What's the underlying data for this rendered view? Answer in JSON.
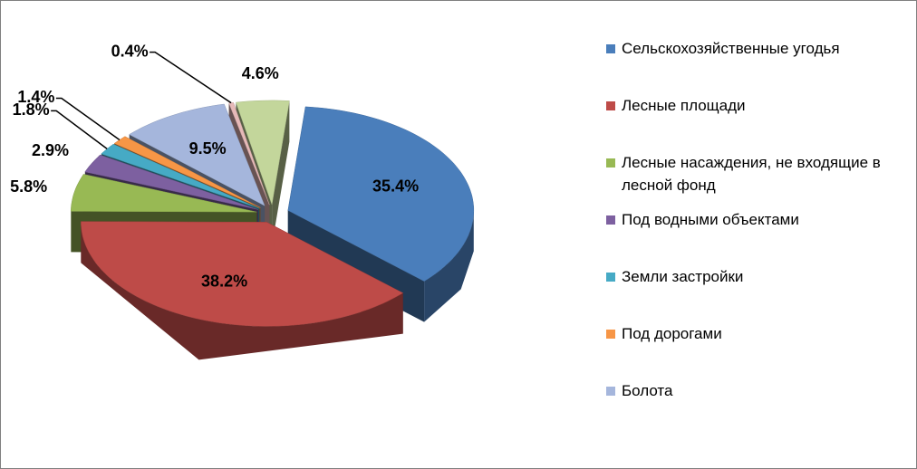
{
  "chart_data": {
    "type": "pie",
    "categories": [
      "Сельскохозяйственные угодья",
      "Лесные площади",
      "Лесные насаждения, не входящие в лесной фонд",
      "Под водными объектами",
      "Земли застройки",
      "Под дорогами",
      "Болота",
      null,
      null
    ],
    "values": [
      35.4,
      38.2,
      5.8,
      2.9,
      1.8,
      1.4,
      9.5,
      0.4,
      4.6
    ],
    "value_labels": [
      "35.4%",
      "38.2%",
      "5.8%",
      "2.9%",
      "1.8%",
      "1.4%",
      "9.5%",
      "0.4%",
      "4.6%"
    ],
    "colors": [
      "#4a7ebb",
      "#be4b48",
      "#98b954",
      "#7d60a0",
      "#46aac5",
      "#f79646",
      "#a5b6dc",
      "#e6b9b8",
      "#c3d69b"
    ],
    "legend": "right"
  }
}
